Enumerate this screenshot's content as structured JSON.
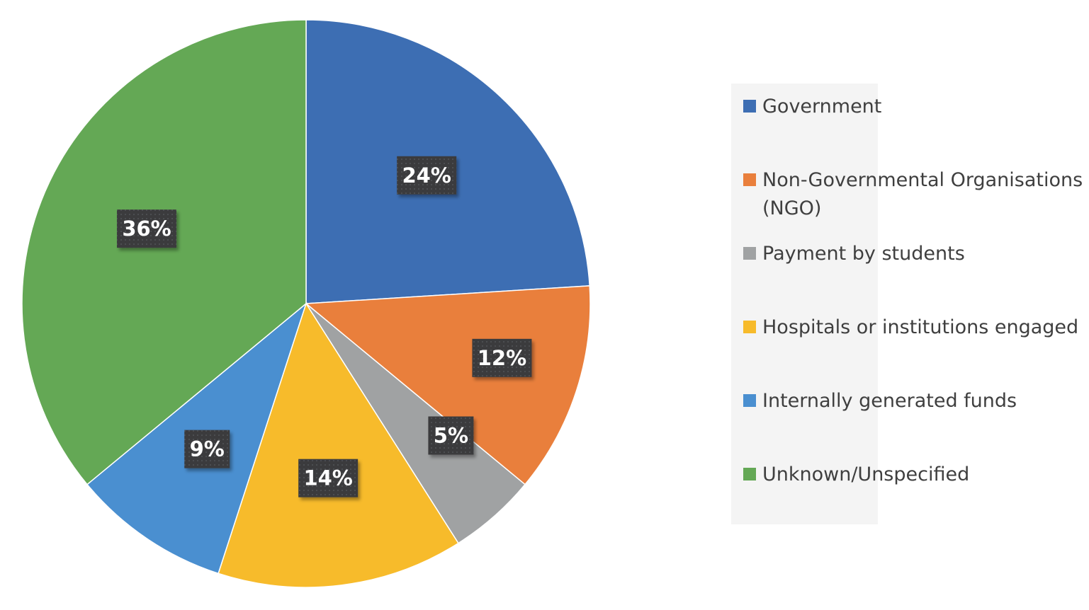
{
  "chart_data": {
    "type": "pie",
    "title": "",
    "slices": [
      {
        "label": "Government",
        "value": 24,
        "display": "24%",
        "color": "#3d6eb3"
      },
      {
        "label": "Non-Governmental Organisations (NGO)",
        "label_lines": [
          "Non-Governmental Organisations",
          "(NGO)"
        ],
        "value": 12,
        "display": "12%",
        "color": "#e97f3c"
      },
      {
        "label": "Payment by students",
        "value": 5,
        "display": "5%",
        "color": "#a0a2a3"
      },
      {
        "label": "Hospitals or institutions engaged",
        "value": 14,
        "display": "14%",
        "color": "#f7bb2b"
      },
      {
        "label": "Internally generated funds",
        "value": 9,
        "display": "9%",
        "color": "#4a8fd0"
      },
      {
        "label": "Unknown/Unspecified",
        "value": 36,
        "display": "36%",
        "color": "#64a855"
      }
    ],
    "start_angle_deg": 0,
    "direction": "clockwise",
    "legend_position": "right",
    "data_labels": "percent"
  }
}
